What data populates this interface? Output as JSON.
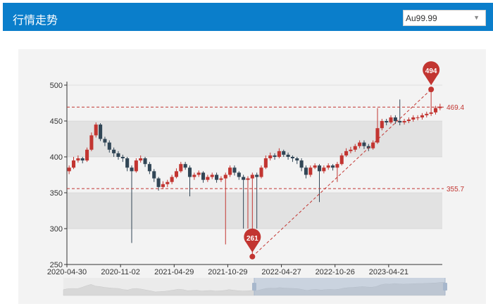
{
  "header": {
    "title": "行情走势",
    "select_value": "Au99.99"
  },
  "colors": {
    "header": "#0a7ecb",
    "up": "#c23531",
    "down": "#314656",
    "markline": "#c23531",
    "band": "#e2e2e2"
  },
  "chart_data": {
    "type": "candlestick",
    "ylim": [
      250,
      500
    ],
    "yticks": [
      250,
      300,
      350,
      400,
      450,
      500
    ],
    "grid_bands": true,
    "xtick_labels": [
      {
        "index": 0,
        "label": "2020-04-30"
      },
      {
        "index": 12,
        "label": "2020-11-02"
      },
      {
        "index": 24,
        "label": "2021-04-29"
      },
      {
        "index": 36,
        "label": "2021-10-29"
      },
      {
        "index": 48,
        "label": "2022-04-27"
      },
      {
        "index": 60,
        "label": "2022-10-26"
      },
      {
        "index": 72,
        "label": "2023-04-21"
      }
    ],
    "candles_ohlc": [
      [
        380,
        385,
        376,
        388
      ],
      [
        385,
        395,
        383,
        400
      ],
      [
        395,
        398,
        392,
        402
      ],
      [
        398,
        395,
        391,
        400
      ],
      [
        395,
        410,
        393,
        413
      ],
      [
        410,
        430,
        408,
        434
      ],
      [
        430,
        445,
        427,
        448
      ],
      [
        445,
        425,
        422,
        447
      ],
      [
        425,
        420,
        415,
        428
      ],
      [
        420,
        410,
        406,
        423
      ],
      [
        410,
        405,
        400,
        413
      ],
      [
        405,
        400,
        396,
        408
      ],
      [
        400,
        398,
        393,
        403
      ],
      [
        398,
        385,
        380,
        400
      ],
      [
        385,
        380,
        280,
        388
      ],
      [
        380,
        395,
        378,
        398
      ],
      [
        395,
        398,
        392,
        402
      ],
      [
        398,
        390,
        386,
        400
      ],
      [
        390,
        380,
        376,
        393
      ],
      [
        380,
        370,
        365,
        383
      ],
      [
        370,
        358,
        353,
        372
      ],
      [
        358,
        362,
        355,
        366
      ],
      [
        362,
        365,
        358,
        368
      ],
      [
        365,
        372,
        362,
        375
      ],
      [
        372,
        380,
        370,
        384
      ],
      [
        380,
        390,
        378,
        393
      ],
      [
        390,
        385,
        382,
        393
      ],
      [
        385,
        372,
        345,
        388
      ],
      [
        372,
        375,
        368,
        378
      ],
      [
        375,
        378,
        372,
        381
      ],
      [
        378,
        368,
        364,
        380
      ],
      [
        368,
        372,
        365,
        375
      ],
      [
        372,
        375,
        369,
        378
      ],
      [
        375,
        368,
        364,
        378
      ],
      [
        368,
        370,
        365,
        373
      ],
      [
        370,
        375,
        278,
        378
      ],
      [
        375,
        385,
        372,
        388
      ],
      [
        385,
        378,
        374,
        388
      ],
      [
        378,
        372,
        368,
        380
      ],
      [
        372,
        368,
        300,
        375
      ],
      [
        368,
        370,
        300,
        373
      ],
      [
        370,
        375,
        261,
        378
      ],
      [
        375,
        372,
        300,
        378
      ],
      [
        372,
        385,
        370,
        388
      ],
      [
        385,
        398,
        383,
        402
      ],
      [
        398,
        402,
        395,
        406
      ],
      [
        402,
        400,
        396,
        405
      ],
      [
        400,
        408,
        398,
        412
      ],
      [
        408,
        403,
        400,
        410
      ],
      [
        403,
        400,
        396,
        406
      ],
      [
        400,
        398,
        393,
        402
      ],
      [
        398,
        395,
        390,
        400
      ],
      [
        395,
        385,
        380,
        398
      ],
      [
        385,
        375,
        370,
        388
      ],
      [
        375,
        385,
        372,
        388
      ],
      [
        385,
        388,
        383,
        391
      ],
      [
        388,
        380,
        337,
        390
      ],
      [
        380,
        385,
        377,
        388
      ],
      [
        385,
        388,
        382,
        391
      ],
      [
        388,
        385,
        381,
        390
      ],
      [
        385,
        390,
        365,
        393
      ],
      [
        390,
        402,
        388,
        405
      ],
      [
        402,
        408,
        400,
        412
      ],
      [
        408,
        410,
        405,
        414
      ],
      [
        410,
        415,
        407,
        418
      ],
      [
        415,
        420,
        412,
        423
      ],
      [
        420,
        415,
        411,
        423
      ],
      [
        415,
        412,
        408,
        418
      ],
      [
        412,
        420,
        410,
        423
      ],
      [
        420,
        440,
        418,
        468
      ],
      [
        440,
        450,
        437,
        453
      ],
      [
        450,
        448,
        444,
        453
      ],
      [
        448,
        455,
        446,
        458
      ],
      [
        455,
        450,
        446,
        458
      ],
      [
        450,
        448,
        444,
        480
      ],
      [
        448,
        450,
        445,
        453
      ],
      [
        450,
        452,
        447,
        455
      ],
      [
        452,
        455,
        449,
        458
      ],
      [
        455,
        455,
        451,
        458
      ],
      [
        455,
        458,
        452,
        461
      ],
      [
        458,
        460,
        455,
        463
      ],
      [
        460,
        462,
        457,
        494
      ],
      [
        462,
        468,
        459,
        471
      ],
      [
        468,
        470,
        465,
        474
      ]
    ],
    "mark_points": [
      {
        "label": "494",
        "value": 494,
        "type": "max",
        "index": 81
      },
      {
        "label": "261",
        "value": 261,
        "type": "min",
        "index": 41
      }
    ],
    "mark_lines": [
      {
        "label": "469.4",
        "value": 469.4
      },
      {
        "label": "355.7",
        "value": 355.7
      }
    ],
    "trend_line": {
      "from": "min",
      "to": "max"
    },
    "data_zoom": {
      "start_percent": 50,
      "end_percent": 100
    }
  }
}
